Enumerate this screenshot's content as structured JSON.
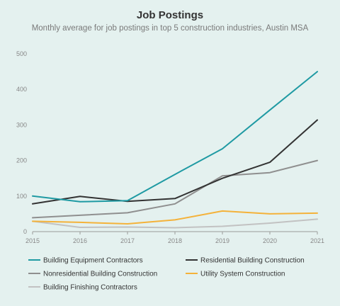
{
  "chart_data": {
    "type": "line",
    "title": "Job Postings",
    "subtitle": "Monthly average for job postings in top 5 construction industries, Austin MSA",
    "xlabel": "",
    "ylabel": "",
    "x": [
      "2015",
      "2016",
      "2017",
      "2018",
      "2019",
      "2020",
      "2021"
    ],
    "ylim": [
      0,
      500
    ],
    "yticks": [
      0,
      100,
      200,
      300,
      400,
      500
    ],
    "grid": false,
    "legend_position": "bottom",
    "series": [
      {
        "name": "Building Equipment Contractors",
        "color": "#1f9aa3",
        "values": [
          100,
          84,
          87,
          161,
          233,
          342,
          450
        ]
      },
      {
        "name": "Residential Building Construction",
        "color": "#333333",
        "values": [
          78,
          99,
          85,
          93,
          150,
          195,
          314
        ]
      },
      {
        "name": "Nonresidential Building Construction",
        "color": "#8f8f8f",
        "values": [
          39,
          46,
          53,
          78,
          157,
          166,
          200
        ]
      },
      {
        "name": "Utility System Construction",
        "color": "#f4b23a",
        "values": [
          29,
          26,
          22,
          33,
          58,
          50,
          52
        ]
      },
      {
        "name": "Building Finishing Contractors",
        "color": "#c2c2c2",
        "values": [
          29,
          12,
          13,
          11,
          15,
          24,
          35
        ]
      }
    ]
  }
}
